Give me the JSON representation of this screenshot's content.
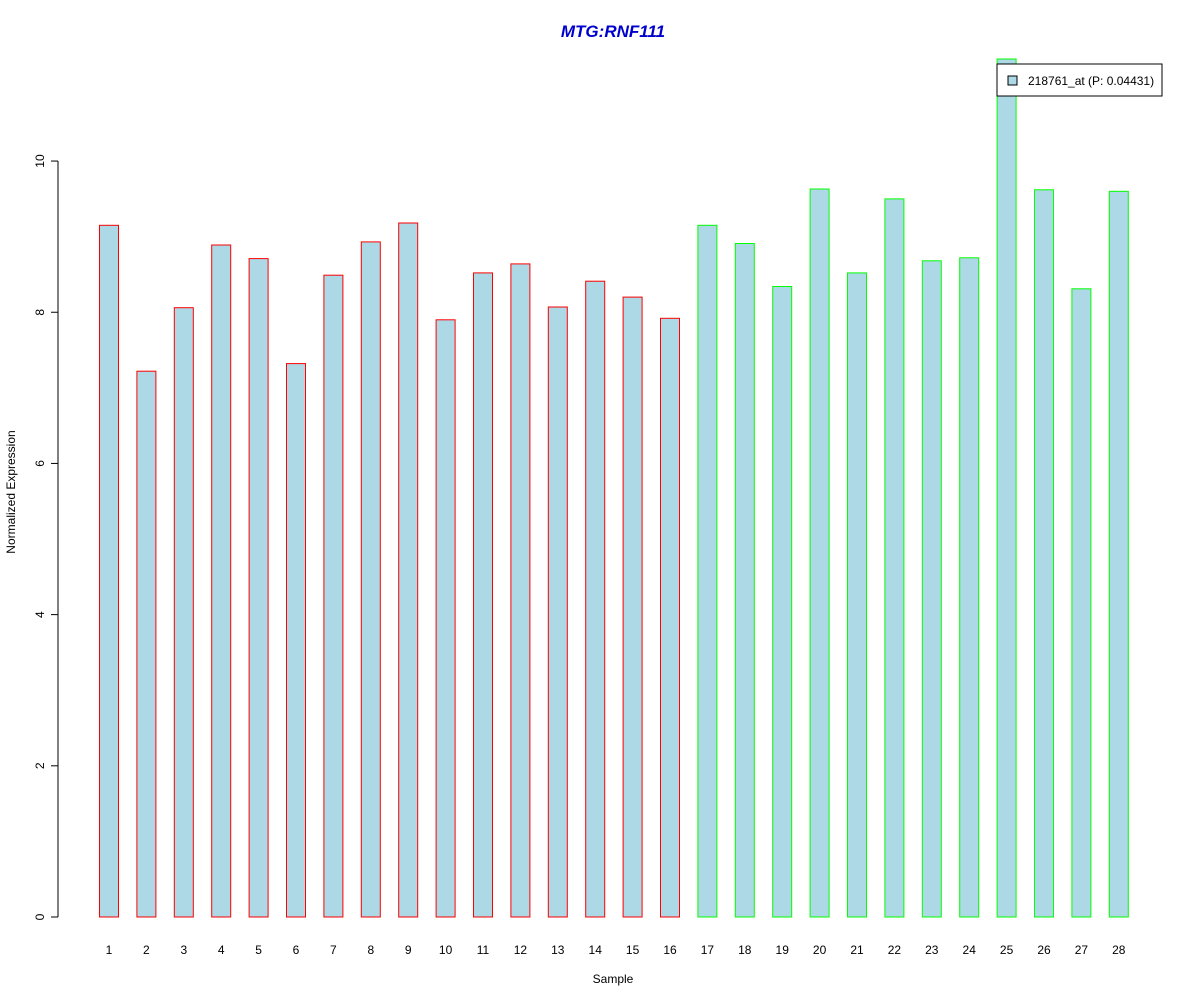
{
  "chart_data": {
    "type": "bar",
    "title": "MTG:RNF111",
    "xlabel": "Sample",
    "ylabel": "Normalized Expression",
    "categories": [
      "1",
      "2",
      "3",
      "4",
      "5",
      "6",
      "7",
      "8",
      "9",
      "10",
      "11",
      "12",
      "13",
      "14",
      "15",
      "16",
      "17",
      "18",
      "19",
      "20",
      "21",
      "22",
      "23",
      "24",
      "25",
      "26",
      "27",
      "28"
    ],
    "series": [
      {
        "name": "218761_at (P: 0.04431)",
        "values": [
          9.15,
          7.22,
          8.06,
          8.89,
          8.71,
          7.32,
          8.49,
          8.93,
          9.18,
          7.9,
          8.52,
          8.64,
          8.07,
          8.41,
          8.2,
          7.92,
          9.15,
          8.91,
          8.34,
          9.63,
          8.52,
          9.5,
          8.68,
          8.72,
          11.35,
          9.62,
          8.31,
          9.6
        ]
      }
    ],
    "groups": [
      {
        "from": 1,
        "to": 16,
        "border_color": "#ff0000"
      },
      {
        "from": 17,
        "to": 28,
        "border_color": "#00ff00"
      }
    ],
    "yticks": [
      0,
      2,
      4,
      6,
      8,
      10
    ],
    "ylim": [
      0,
      11.35
    ],
    "grid": false,
    "legend_position": "top-right",
    "colors": {
      "title": "#0000cc",
      "bar_fill": "#add8e6",
      "axis": "#000000"
    }
  }
}
